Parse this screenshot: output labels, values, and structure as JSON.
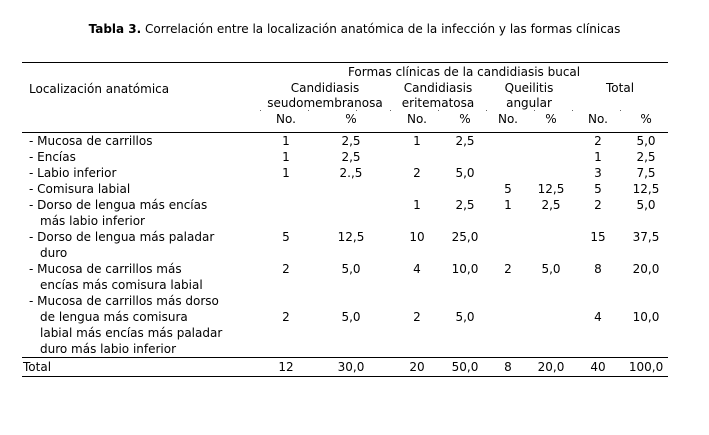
{
  "caption": {
    "label": "Tabla 3.",
    "text": " Correlación entre la localización anatómica de la infección y las formas clínicas"
  },
  "table": {
    "spanning_header": "Formas clínicas de la candidiasis bucal",
    "row_header": "Localización anatómica",
    "row_marker": "-",
    "groups": [
      {
        "name": "Candidiasis\nseudomembranosa",
        "cols": [
          "No.",
          "%"
        ]
      },
      {
        "name": "Candidiasis\neritematosa",
        "cols": [
          "No.",
          "%"
        ]
      },
      {
        "name": "Queilitis\nangular",
        "cols": [
          "No.",
          "%"
        ]
      },
      {
        "name": "Total",
        "cols": [
          "No.",
          "%"
        ]
      }
    ],
    "rows": [
      {
        "lines": [
          "Mucosa de carrillos"
        ],
        "value_line": 1,
        "values": [
          "1",
          "2,5",
          "1",
          "2,5",
          "",
          "",
          "2",
          "5,0"
        ]
      },
      {
        "lines": [
          "Encías"
        ],
        "value_line": 1,
        "values": [
          "1",
          "2,5",
          "",
          "",
          "",
          "",
          "1",
          "2,5"
        ]
      },
      {
        "lines": [
          "Labio inferior"
        ],
        "value_line": 1,
        "values": [
          "1",
          "2.,5",
          "2",
          "5,0",
          "",
          "",
          "3",
          "7,5"
        ]
      },
      {
        "lines": [
          "Comisura labial"
        ],
        "value_line": 1,
        "values": [
          "",
          "",
          "",
          "",
          "5",
          "12,5",
          "5",
          "12,5"
        ]
      },
      {
        "lines": [
          "Dorso de lengua más encías",
          "más labio inferior"
        ],
        "value_line": 1,
        "values": [
          "",
          "",
          "1",
          "2,5",
          "1",
          "2,5",
          "2",
          "5,0"
        ]
      },
      {
        "lines": [
          "Dorso de lengua más paladar",
          "duro"
        ],
        "value_line": 1,
        "values": [
          "5",
          "12,5",
          "10",
          "25,0",
          "",
          "",
          "15",
          "37,5"
        ]
      },
      {
        "lines": [
          "Mucosa de carrillos más",
          "encías más comisura labial"
        ],
        "value_line": 1,
        "values": [
          "2",
          "5,0",
          "4",
          "10,0",
          "2",
          "5,0",
          "8",
          "20,0"
        ]
      },
      {
        "lines": [
          "Mucosa de carrillos más dorso",
          "de lengua más comisura",
          "labial más encías más paladar",
          "duro más labio inferior"
        ],
        "value_line": 2,
        "values": [
          "2",
          "5,0",
          "2",
          "5,0",
          "",
          "",
          "4",
          "10,0"
        ]
      }
    ],
    "total_row": {
      "label": "Total",
      "values": [
        "12",
        "30,0",
        "20",
        "50,0",
        "8",
        "20,0",
        "40",
        "100,0"
      ]
    }
  }
}
